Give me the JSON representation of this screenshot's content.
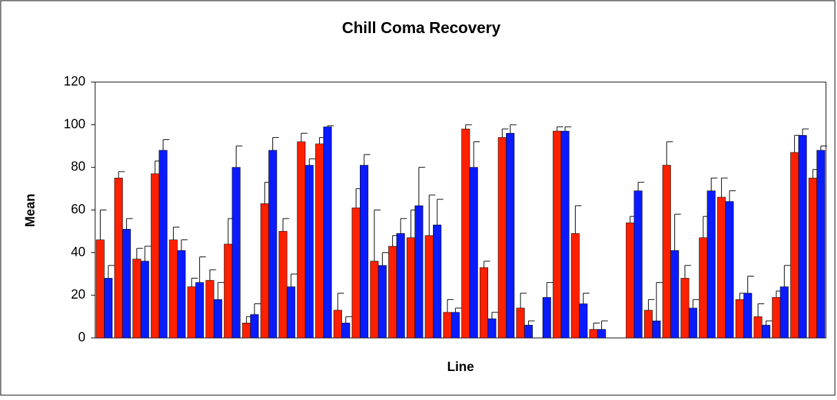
{
  "chart_data": {
    "type": "bar",
    "title": "Chill Coma Recovery",
    "x_label": "Line",
    "y_label": "Mean",
    "categories": [
      null,
      null,
      null,
      null,
      null,
      null,
      null,
      null,
      null,
      null,
      null,
      null,
      null,
      null,
      null,
      null,
      null,
      null,
      null,
      null,
      null,
      null,
      null,
      null,
      null,
      null,
      null,
      null,
      null,
      null,
      null,
      null,
      null,
      null,
      null,
      null,
      null,
      null,
      null,
      null
    ],
    "series": [
      {
        "color": "#ff2000",
        "values": [
          46,
          75,
          37,
          77,
          46,
          24,
          27,
          44,
          7,
          63,
          50,
          92,
          91,
          13,
          61,
          36,
          43,
          47,
          48,
          12,
          98,
          33,
          94,
          14,
          0,
          97,
          49,
          4,
          0,
          54,
          13,
          81,
          28,
          47,
          66,
          18,
          10,
          19,
          87,
          75
        ],
        "errors": [
          14,
          3,
          5,
          6,
          6,
          4,
          5,
          12,
          3,
          10,
          6,
          4,
          3,
          8,
          9,
          24,
          5,
          13,
          19,
          6,
          2,
          3,
          4,
          7,
          0,
          2,
          13,
          3,
          0,
          3,
          5,
          11,
          6,
          10,
          9,
          3,
          6,
          3,
          8,
          4
        ]
      },
      {
        "color": "#0a1cff",
        "values": [
          28,
          51,
          36,
          88,
          41,
          26,
          18,
          80,
          11,
          88,
          24,
          81,
          99,
          7,
          81,
          34,
          49,
          62,
          53,
          12,
          80,
          9,
          96,
          6,
          19,
          97,
          16,
          4,
          0,
          69,
          8,
          41,
          14,
          69,
          64,
          21,
          6,
          24,
          95,
          88
        ],
        "errors": [
          6,
          5,
          7,
          5,
          5,
          12,
          8,
          10,
          5,
          6,
          6,
          3,
          0.5,
          3,
          5,
          6,
          7,
          18,
          12,
          2,
          12,
          3,
          4,
          2,
          7,
          2,
          5,
          4,
          0,
          4,
          18,
          17,
          4,
          6,
          5,
          8,
          2,
          10,
          3,
          2
        ]
      }
    ],
    "ylim": [
      0,
      120
    ],
    "yticks": [
      0,
      20,
      40,
      60,
      80,
      100,
      120
    ],
    "grid": false
  }
}
